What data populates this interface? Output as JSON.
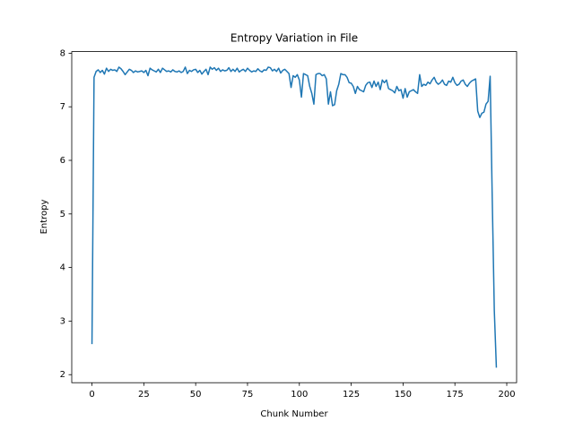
{
  "chart_data": {
    "type": "line",
    "title": "Entropy Variation in File",
    "x_label": "Chunk Number",
    "y_label": "Entropy",
    "color": "#1f77b4",
    "x": [
      0,
      1,
      2,
      3,
      4,
      5,
      6,
      7,
      8,
      9,
      10,
      11,
      12,
      13,
      14,
      15,
      16,
      17,
      18,
      19,
      20,
      21,
      22,
      23,
      24,
      25,
      26,
      27,
      28,
      29,
      30,
      31,
      32,
      33,
      34,
      35,
      36,
      37,
      38,
      39,
      40,
      41,
      42,
      43,
      44,
      45,
      46,
      47,
      48,
      49,
      50,
      51,
      52,
      53,
      54,
      55,
      56,
      57,
      58,
      59,
      60,
      61,
      62,
      63,
      64,
      65,
      66,
      67,
      68,
      69,
      70,
      71,
      72,
      73,
      74,
      75,
      76,
      77,
      78,
      79,
      80,
      81,
      82,
      83,
      84,
      85,
      86,
      87,
      88,
      89,
      90,
      91,
      92,
      93,
      94,
      95,
      96,
      97,
      98,
      99,
      100,
      101,
      102,
      103,
      104,
      105,
      106,
      107,
      108,
      109,
      110,
      111,
      112,
      113,
      114,
      115,
      116,
      117,
      118,
      119,
      120,
      121,
      122,
      123,
      124,
      125,
      126,
      127,
      128,
      129,
      130,
      131,
      132,
      133,
      134,
      135,
      136,
      137,
      138,
      139,
      140,
      141,
      142,
      143,
      144,
      145,
      146,
      147,
      148,
      149,
      150,
      151,
      152,
      153,
      154,
      155,
      156,
      157,
      158,
      159,
      160,
      161,
      162,
      163,
      164,
      165,
      166,
      167,
      168,
      169,
      170,
      171,
      172,
      173,
      174,
      175,
      176,
      177,
      178,
      179,
      180,
      181,
      182,
      183,
      184,
      185,
      186,
      187,
      188,
      189,
      190,
      191,
      192,
      193,
      194,
      195
    ],
    "values": [
      2.57,
      7.55,
      7.66,
      7.69,
      7.64,
      7.68,
      7.61,
      7.72,
      7.66,
      7.7,
      7.68,
      7.69,
      7.66,
      7.74,
      7.71,
      7.66,
      7.6,
      7.65,
      7.7,
      7.68,
      7.64,
      7.67,
      7.65,
      7.66,
      7.67,
      7.64,
      7.68,
      7.58,
      7.72,
      7.69,
      7.67,
      7.65,
      7.7,
      7.64,
      7.72,
      7.69,
      7.66,
      7.67,
      7.65,
      7.69,
      7.66,
      7.65,
      7.67,
      7.64,
      7.66,
      7.74,
      7.62,
      7.68,
      7.66,
      7.69,
      7.7,
      7.64,
      7.68,
      7.61,
      7.66,
      7.7,
      7.6,
      7.74,
      7.7,
      7.73,
      7.68,
      7.72,
      7.66,
      7.69,
      7.67,
      7.68,
      7.73,
      7.66,
      7.7,
      7.66,
      7.72,
      7.65,
      7.68,
      7.7,
      7.66,
      7.72,
      7.68,
      7.65,
      7.67,
      7.66,
      7.71,
      7.67,
      7.65,
      7.69,
      7.68,
      7.74,
      7.73,
      7.67,
      7.7,
      7.66,
      7.72,
      7.63,
      7.68,
      7.7,
      7.66,
      7.62,
      7.36,
      7.58,
      7.55,
      7.6,
      7.5,
      7.18,
      7.62,
      7.6,
      7.58,
      7.38,
      7.25,
      7.05,
      7.6,
      7.62,
      7.62,
      7.58,
      7.6,
      7.52,
      7.05,
      7.28,
      7.02,
      7.04,
      7.3,
      7.42,
      7.62,
      7.6,
      7.6,
      7.55,
      7.45,
      7.44,
      7.38,
      7.25,
      7.38,
      7.32,
      7.3,
      7.28,
      7.4,
      7.45,
      7.46,
      7.36,
      7.48,
      7.38,
      7.46,
      7.32,
      7.5,
      7.45,
      7.5,
      7.34,
      7.32,
      7.3,
      7.26,
      7.38,
      7.3,
      7.32,
      7.16,
      7.34,
      7.18,
      7.28,
      7.3,
      7.32,
      7.28,
      7.25,
      7.6,
      7.38,
      7.42,
      7.4,
      7.46,
      7.43,
      7.5,
      7.55,
      7.46,
      7.42,
      7.45,
      7.5,
      7.42,
      7.4,
      7.48,
      7.46,
      7.55,
      7.45,
      7.4,
      7.42,
      7.48,
      7.5,
      7.42,
      7.38,
      7.44,
      7.48,
      7.5,
      7.52,
      6.92,
      6.8,
      6.88,
      6.9,
      7.05,
      7.1,
      7.57,
      5.3,
      3.2,
      2.13
    ],
    "xlim": [
      -9.75,
      204.75
    ],
    "ylim": [
      1.85,
      8.03
    ],
    "xticks": [
      0,
      25,
      50,
      75,
      100,
      125,
      150,
      175,
      200
    ],
    "yticks": [
      2,
      3,
      4,
      5,
      6,
      7,
      8
    ]
  }
}
